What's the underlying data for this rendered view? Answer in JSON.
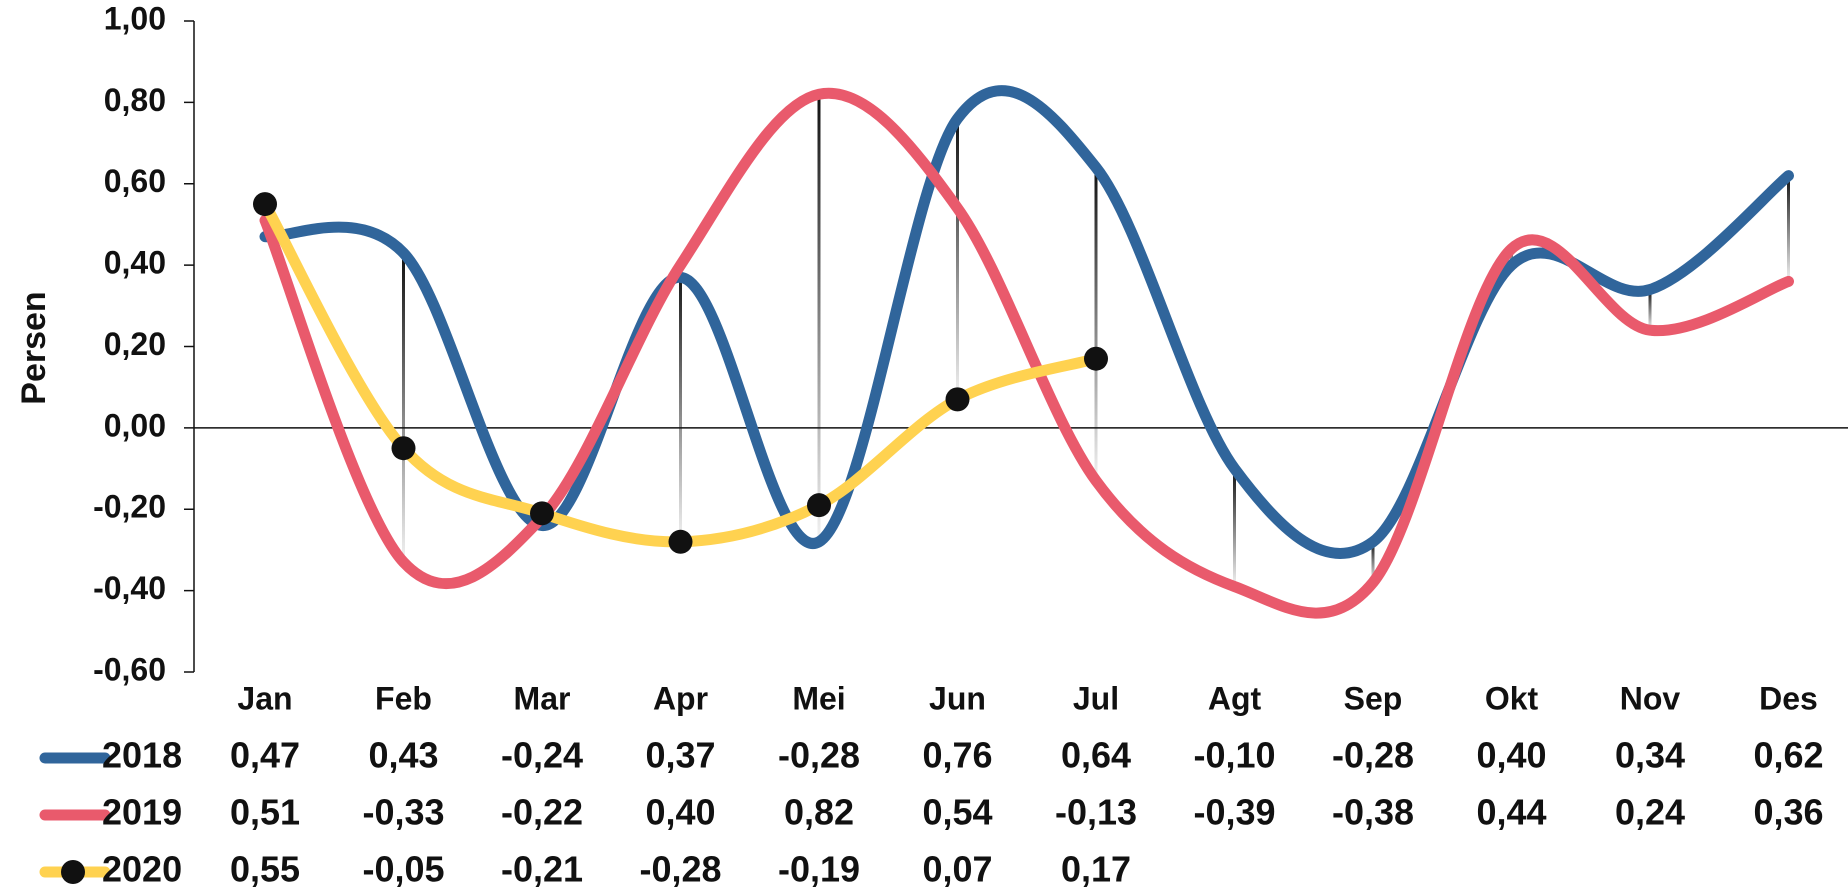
{
  "chart_data": {
    "type": "line",
    "y_label": "Persen",
    "categories": [
      "Jan",
      "Feb",
      "Mar",
      "Apr",
      "Mei",
      "Jun",
      "Jul",
      "Agt",
      "Sep",
      "Okt",
      "Nov",
      "Des"
    ],
    "series": [
      {
        "name": "2018",
        "color": "#30659b",
        "values": [
          0.47,
          0.43,
          -0.24,
          0.37,
          -0.28,
          0.76,
          0.64,
          -0.1,
          -0.28,
          0.4,
          0.34,
          0.62
        ],
        "value_labels": [
          "0,47",
          "0,43",
          "-0,24",
          "0,37",
          "-0,28",
          "0,76",
          "0,64",
          "-0,10",
          "-0,28",
          "0,40",
          "0,34",
          "0,62"
        ]
      },
      {
        "name": "2019",
        "color": "#e95a6c",
        "values": [
          0.51,
          -0.33,
          -0.22,
          0.4,
          0.82,
          0.54,
          -0.13,
          -0.39,
          -0.38,
          0.44,
          0.24,
          0.36
        ],
        "value_labels": [
          "0,51",
          "-0,33",
          "-0,22",
          "0,40",
          "0,82",
          "0,54",
          "-0,13",
          "-0,39",
          "-0,38",
          "0,44",
          "0,24",
          "0,36"
        ]
      },
      {
        "name": "2020",
        "color": "#ffd250",
        "marker": "circle",
        "marker_color": "#111111",
        "values": [
          0.55,
          -0.05,
          -0.21,
          -0.28,
          -0.19,
          0.07,
          0.17,
          null,
          null,
          null,
          null,
          null
        ],
        "value_labels": [
          "0,55",
          "-0,05",
          "-0,21",
          "-0,28",
          "-0,19",
          "0,07",
          "0,17",
          null,
          null,
          null,
          null,
          null
        ]
      }
    ],
    "ylim": [
      -0.6,
      1.0
    ],
    "yticks": [
      {
        "value": -0.6,
        "label": "-0,60"
      },
      {
        "value": -0.4,
        "label": "-0,40"
      },
      {
        "value": -0.2,
        "label": "-0,20"
      },
      {
        "value": 0,
        "label": "0,00"
      },
      {
        "value": 0.2,
        "label": "0,20"
      },
      {
        "value": 0.4,
        "label": "0,40"
      },
      {
        "value": 0.6,
        "label": "0,60"
      },
      {
        "value": 0.8,
        "label": "0,80"
      },
      {
        "value": 1.0,
        "label": "1,00"
      }
    ],
    "grid": false,
    "high_low_lines": true,
    "data_table": true
  }
}
